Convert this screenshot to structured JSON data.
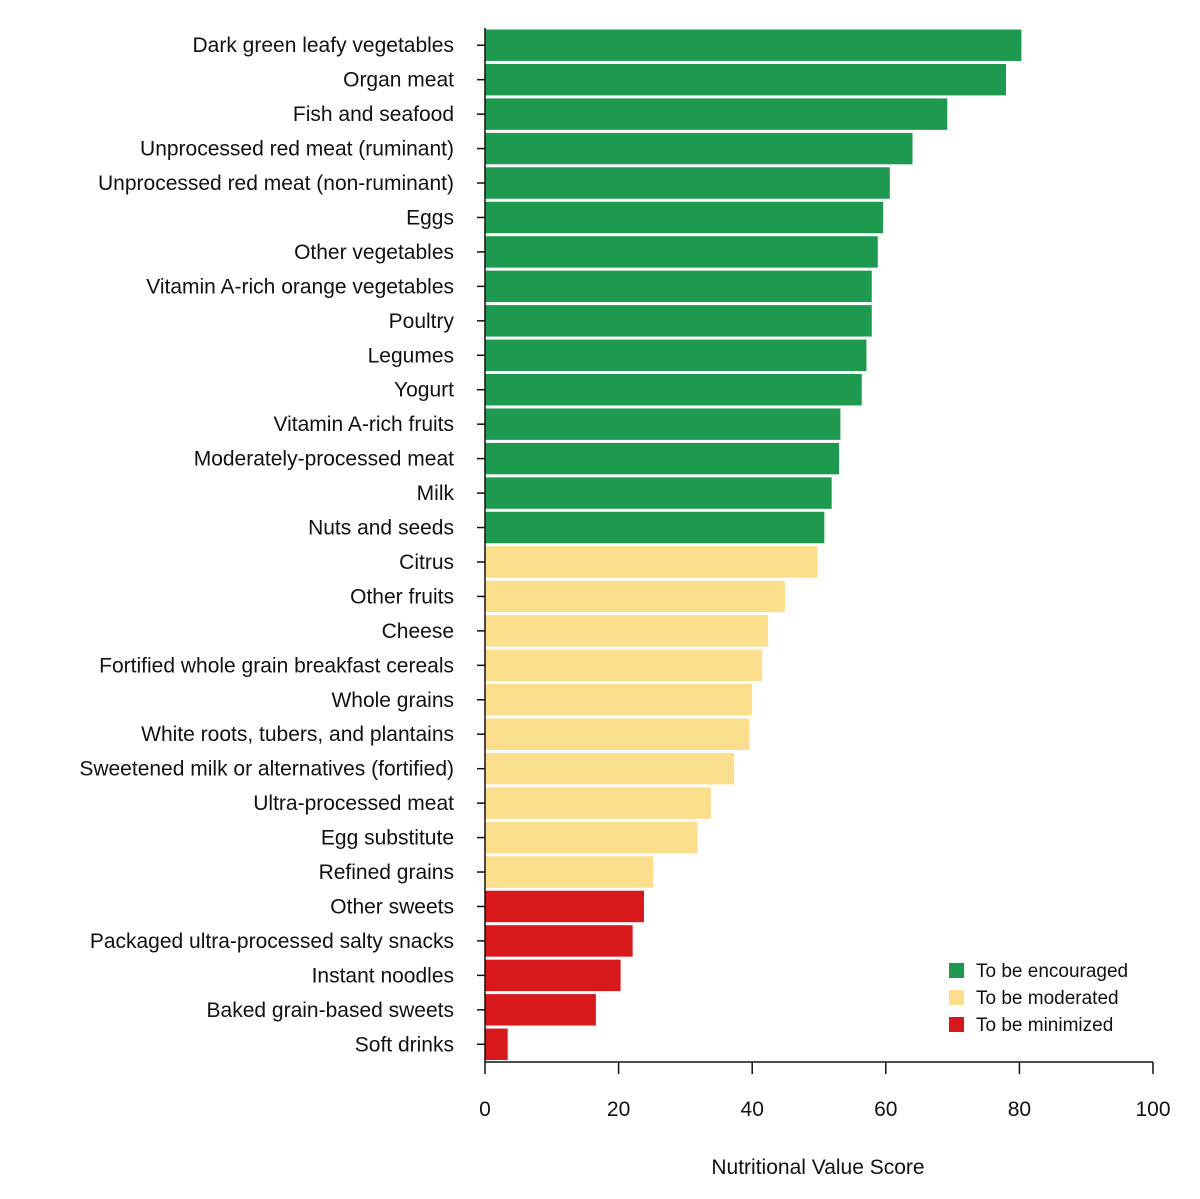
{
  "chart_data": {
    "type": "bar",
    "orientation": "horizontal",
    "title": "",
    "xlabel": "Nutritional Value Score",
    "ylabel": "",
    "xlim": [
      0,
      100
    ],
    "xticks": [
      0,
      20,
      40,
      60,
      80,
      100
    ],
    "grid": false,
    "legend_position": "bottom-right",
    "groups": [
      {
        "key": "encouraged",
        "label": "To be encouraged",
        "color": "#1e9a50"
      },
      {
        "key": "moderated",
        "label": "To be moderated",
        "color": "#fcdf8c"
      },
      {
        "key": "minimized",
        "label": "To be minimized",
        "color": "#d7191c"
      }
    ],
    "categories": [
      "Dark green leafy vegetables",
      "Organ meat",
      "Fish and seafood",
      "Unprocessed red meat (ruminant)",
      "Unprocessed red meat (non-ruminant)",
      "Eggs",
      "Other vegetables",
      "Vitamin A-rich orange vegetables",
      "Poultry",
      "Legumes",
      "Yogurt",
      "Vitamin A-rich fruits",
      "Moderately-processed meat",
      "Milk",
      "Nuts and seeds",
      "Citrus",
      "Other fruits",
      "Cheese",
      "Fortified whole grain breakfast cereals",
      "Whole grains",
      "White roots, tubers, and plantains",
      "Sweetened milk or alternatives (fortified)",
      "Ultra-processed meat",
      "Egg substitute",
      "Refined grains",
      "Other sweets",
      "Packaged ultra-processed salty snacks",
      "Instant noodles",
      "Baked grain-based sweets",
      "Soft drinks"
    ],
    "values": [
      80.3,
      78.0,
      69.2,
      64.0,
      60.6,
      59.6,
      58.8,
      57.9,
      57.9,
      57.1,
      56.4,
      53.2,
      53.0,
      51.9,
      50.8,
      49.8,
      44.9,
      42.4,
      41.5,
      40.0,
      39.6,
      37.3,
      33.8,
      31.8,
      25.2,
      23.8,
      22.1,
      20.3,
      16.6,
      3.4
    ],
    "group_of_category": [
      "encouraged",
      "encouraged",
      "encouraged",
      "encouraged",
      "encouraged",
      "encouraged",
      "encouraged",
      "encouraged",
      "encouraged",
      "encouraged",
      "encouraged",
      "encouraged",
      "encouraged",
      "encouraged",
      "encouraged",
      "moderated",
      "moderated",
      "moderated",
      "moderated",
      "moderated",
      "moderated",
      "moderated",
      "moderated",
      "moderated",
      "moderated",
      "minimized",
      "minimized",
      "minimized",
      "minimized",
      "minimized"
    ]
  }
}
